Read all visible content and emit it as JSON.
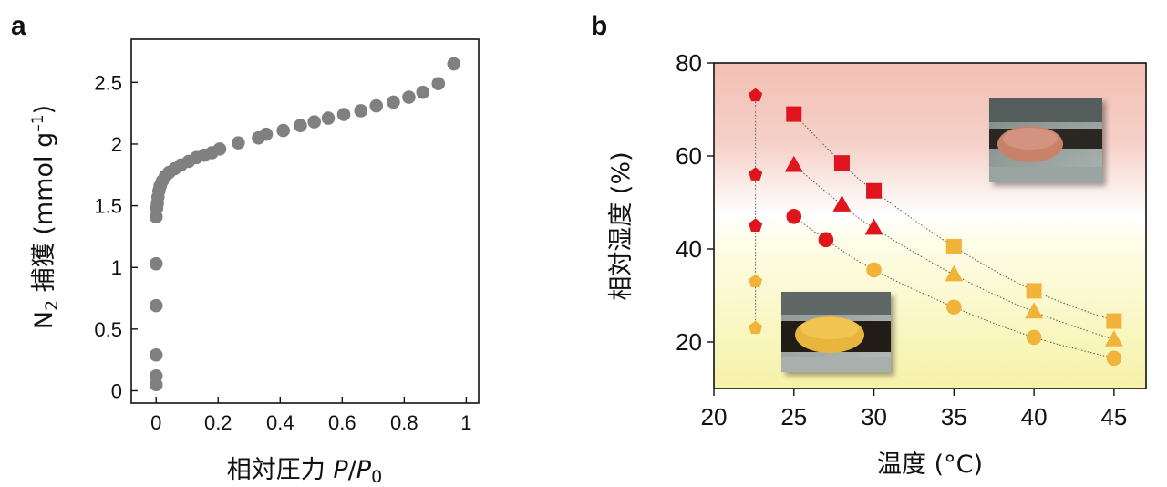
{
  "panels": {
    "a": "a",
    "b": "b"
  },
  "chart_data": [
    {
      "type": "scatter",
      "panel": "a",
      "title": "",
      "xlabel": {
        "prefix": "相対圧力 ",
        "P": "P",
        "slash": "/",
        "P0": "P",
        "sub": "0"
      },
      "ylabel": {
        "main": "N",
        "sub": "2",
        "rest": " 捕獲 (mmol g",
        "sup": "–1",
        "close": ")"
      },
      "xlim": [
        -0.08,
        1.04
      ],
      "ylim": [
        -0.1,
        2.85
      ],
      "xticks": [
        0,
        0.2,
        0.4,
        0.6,
        0.8,
        1
      ],
      "xtick_labels": [
        "0",
        "0.2",
        "0.4",
        "0.6",
        "0.8",
        "1"
      ],
      "yticks": [
        0,
        0.5,
        1,
        1.5,
        2,
        2.5
      ],
      "ytick_labels": [
        "0",
        "0.5",
        "1",
        "1.5",
        "2",
        "2.5"
      ],
      "marker_color": "#808080",
      "series": [
        {
          "x": [
            0.0,
            0.0,
            0.0,
            0.0,
            0.0,
            0.0,
            0.002,
            0.004,
            0.006,
            0.009,
            0.013,
            0.02,
            0.03,
            0.042,
            0.06,
            0.08,
            0.105,
            0.13,
            0.155,
            0.18,
            0.205,
            0.265,
            0.33,
            0.355,
            0.41,
            0.465,
            0.51,
            0.555,
            0.605,
            0.66,
            0.71,
            0.765,
            0.815,
            0.86,
            0.91,
            0.96
          ],
          "y": [
            0.05,
            0.12,
            0.29,
            0.69,
            1.03,
            1.41,
            1.48,
            1.52,
            1.57,
            1.62,
            1.66,
            1.7,
            1.74,
            1.77,
            1.8,
            1.83,
            1.86,
            1.89,
            1.91,
            1.93,
            1.96,
            2.01,
            2.05,
            2.08,
            2.11,
            2.15,
            2.18,
            2.21,
            2.24,
            2.27,
            2.31,
            2.34,
            2.38,
            2.42,
            2.49,
            2.65
          ]
        }
      ]
    },
    {
      "type": "scatter",
      "panel": "b",
      "title": "",
      "xlabel": "温度 (°C)",
      "ylabel": "相対湿度 (%)",
      "xlim": [
        20,
        47
      ],
      "ylim": [
        10,
        80
      ],
      "xticks": [
        20,
        25,
        30,
        35,
        40,
        45
      ],
      "xtick_labels": [
        "20",
        "25",
        "30",
        "35",
        "40",
        "45"
      ],
      "yticks": [
        20,
        40,
        60,
        80
      ],
      "ytick_labels": [
        "20",
        "40",
        "60",
        "80"
      ],
      "background_gradient": {
        "top": "#f3c0b4",
        "middle": "#ffffff",
        "bottom": "#f6f2a8"
      },
      "colors": {
        "red": "#e0141c",
        "orange": "#f2b33a",
        "line": "#555555"
      },
      "series": [
        {
          "marker": "pentagon",
          "x": [
            22.6,
            22.6,
            22.6,
            22.6,
            22.6
          ],
          "y": [
            73,
            56,
            45,
            33,
            23
          ],
          "colors": [
            "red",
            "red",
            "red",
            "orange",
            "orange"
          ]
        },
        {
          "marker": "square",
          "x": [
            25,
            28,
            30,
            35,
            40,
            45
          ],
          "y": [
            69,
            58.5,
            52.5,
            40.5,
            31,
            24.5
          ],
          "colors": [
            "red",
            "red",
            "red",
            "orange",
            "orange",
            "orange"
          ]
        },
        {
          "marker": "triangle",
          "x": [
            25,
            28,
            30,
            35,
            40,
            45
          ],
          "y": [
            58,
            49.5,
            44.5,
            34.5,
            26.5,
            20.5
          ],
          "colors": [
            "red",
            "red",
            "red",
            "orange",
            "orange",
            "orange"
          ]
        },
        {
          "marker": "circle",
          "x": [
            25,
            27,
            30,
            35,
            40,
            45
          ],
          "y": [
            47,
            42,
            35.5,
            27.5,
            21,
            16.5
          ],
          "colors": [
            "red",
            "red",
            "orange",
            "orange",
            "orange",
            "orange"
          ]
        }
      ],
      "insets": [
        {
          "name": "red-powder-photo",
          "powder_color": "#c9826b"
        },
        {
          "name": "yellow-powder-photo",
          "powder_color": "#e8b63c"
        }
      ]
    }
  ]
}
